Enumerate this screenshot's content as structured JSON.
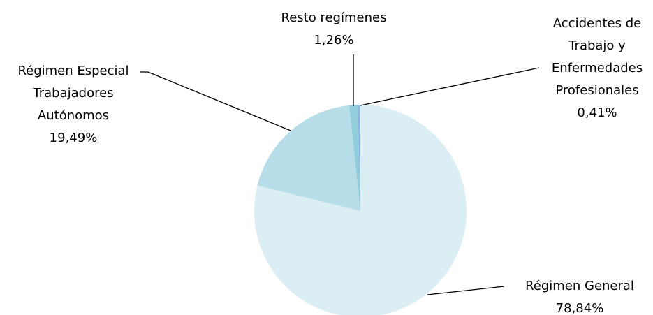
{
  "chart_data": {
    "type": "pie",
    "categories": [
      "Régimen General",
      "Régimen Especial Trabajadores Autónomos",
      "Resto regímenes",
      "Accidentes de Trabajo y Enfermedades Profesionales"
    ],
    "values": [
      78.84,
      19.49,
      1.26,
      0.41
    ],
    "value_labels": [
      "78,84%",
      "19,49%",
      "1,26%",
      "0,41%"
    ],
    "colors": [
      "#daeef3",
      "#b7dde8",
      "#92cddc",
      "#8db3e2"
    ]
  }
}
